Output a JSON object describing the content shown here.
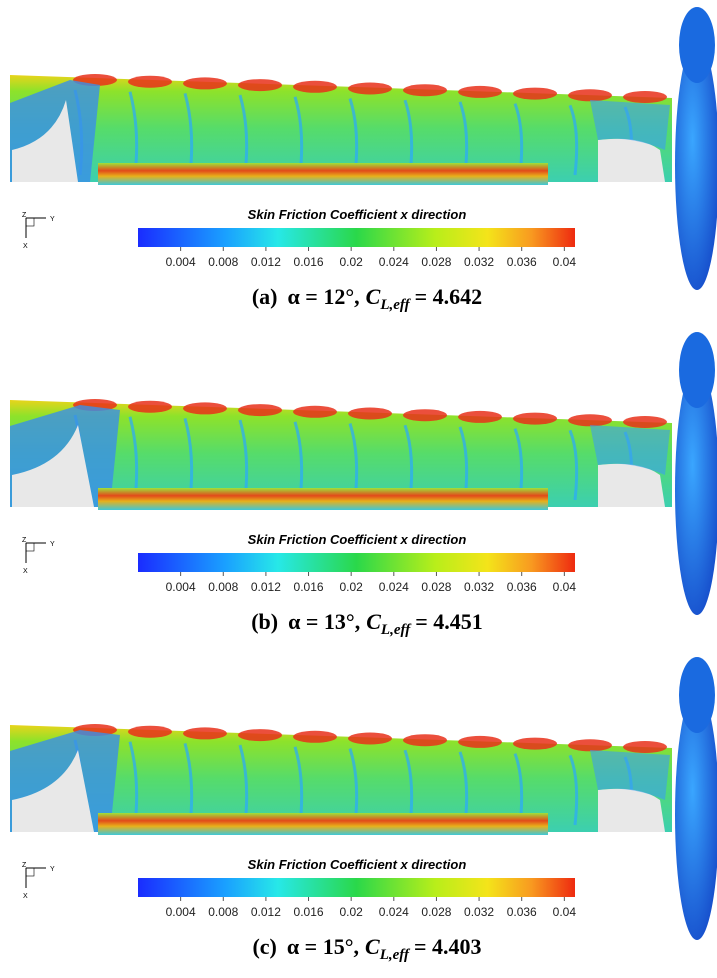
{
  "panels": [
    {
      "colorbar": {
        "title": "Skin Friction Coefficient x direction",
        "range": [
          0,
          0.041
        ],
        "ticks": [
          0.004,
          0.008,
          0.012,
          0.016,
          0.02,
          0.024,
          0.028,
          0.032,
          0.036,
          0.04
        ]
      },
      "axes": {
        "y": "Y",
        "z": "Z",
        "x": "X"
      },
      "caption": {
        "label": "(a)",
        "alpha": "α = 12°,",
        "symbol": "C",
        "subscript": "L,eff",
        "value": "= 4.642"
      }
    },
    {
      "colorbar": {
        "title": "Skin Friction Coefficient x direction",
        "range": [
          0,
          0.041
        ],
        "ticks": [
          0.004,
          0.008,
          0.012,
          0.016,
          0.02,
          0.024,
          0.028,
          0.032,
          0.036,
          0.04
        ]
      },
      "axes": {
        "y": "Y",
        "z": "Z",
        "x": "X"
      },
      "caption": {
        "label": "(b)",
        "alpha": "α = 13°,",
        "symbol": "C",
        "subscript": "L,eff",
        "value": "= 4.451"
      }
    },
    {
      "colorbar": {
        "title": "Skin Friction Coefficient x direction",
        "range": [
          0,
          0.041
        ],
        "ticks": [
          0.004,
          0.008,
          0.012,
          0.016,
          0.02,
          0.024,
          0.028,
          0.032,
          0.036,
          0.04
        ]
      },
      "axes": {
        "y": "Y",
        "z": "Z",
        "x": "X"
      },
      "caption": {
        "label": "(c)",
        "alpha": "α = 15°,",
        "symbol": "C",
        "subscript": "L,eff",
        "value": "= 4.403"
      }
    }
  ]
}
